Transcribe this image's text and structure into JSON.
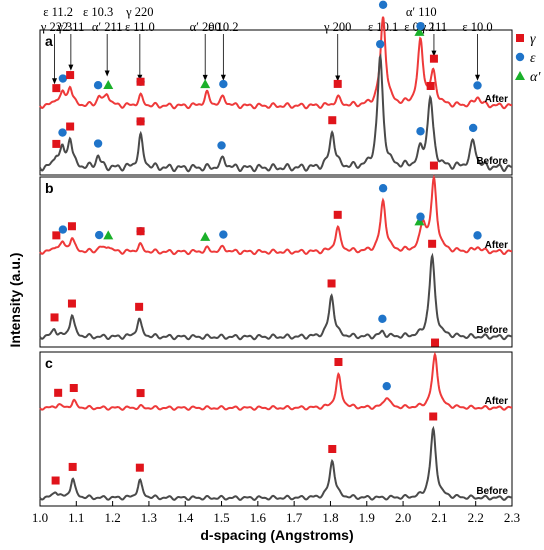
{
  "chart_data": {
    "type": "line",
    "xlabel": "d-spacing (Angstroms)",
    "ylabel": "Intensity (a.u.)",
    "xlim": [
      1.0,
      2.3
    ],
    "xticks": [
      "1.0",
      "1.1",
      "1.2",
      "1.3",
      "1.4",
      "1.5",
      "1.6",
      "1.7",
      "1.8",
      "1.9",
      "2.0",
      "2.1",
      "2.2",
      "2.3"
    ],
    "colors": {
      "after": "#ee3a3a",
      "before": "#4a4a4a",
      "gamma": "#e0141b",
      "epsilon": "#1f74c9",
      "alpha": "#1ab02a"
    },
    "legend": [
      {
        "symbol": "square",
        "color": "#e0141b",
        "label": "γ"
      },
      {
        "symbol": "circle",
        "color": "#1f74c9",
        "label": "ε"
      },
      {
        "symbol": "triangle",
        "color": "#1ab02a",
        "label": "α′"
      }
    ],
    "annotations": [
      {
        "label": "ε 11.2",
        "x": 1.05,
        "row": 1
      },
      {
        "label": "γ 222",
        "x": 1.04,
        "row": 2
      },
      {
        "label": "γ 311",
        "x": 1.085,
        "row": 2
      },
      {
        "label": "ε 10.3",
        "x": 1.16,
        "row": 1
      },
      {
        "label": "α′ 211",
        "x": 1.185,
        "row": 2
      },
      {
        "label": "γ 220",
        "x": 1.275,
        "row": 1
      },
      {
        "label": "ε 11.0",
        "x": 1.275,
        "row": 2
      },
      {
        "label": "α′ 200",
        "x": 1.455,
        "row": 2
      },
      {
        "label": "ε 10.2",
        "x": 1.505,
        "row": 2
      },
      {
        "label": "γ 200",
        "x": 1.82,
        "row": 2
      },
      {
        "label": "α′ 110",
        "x": 2.05,
        "row": 1
      },
      {
        "label": "ε 10.1",
        "x": 1.945,
        "row": 2
      },
      {
        "label": "ε 00.2",
        "x": 2.045,
        "row": 2
      },
      {
        "label": "γ 111",
        "x": 2.085,
        "row": 2
      },
      {
        "label": "ε 10.0",
        "x": 2.205,
        "row": 2
      }
    ],
    "panels": [
      {
        "letter": "a",
        "series": [
          {
            "name": "After",
            "peaks": [
              [
                1.045,
                0.07
              ],
              [
                1.063,
                0.13
              ],
              [
                1.083,
                0.22
              ],
              [
                1.163,
                0.1
              ],
              [
                1.185,
                0.14
              ],
              [
                1.277,
                0.11
              ],
              [
                1.46,
                0.14
              ],
              [
                1.505,
                0.1
              ],
              [
                1.82,
                0.09
              ],
              [
                1.945,
                1.0
              ],
              [
                2.048,
                0.72
              ],
              [
                2.083,
                0.35
              ],
              [
                2.205,
                0.1
              ]
            ],
            "markers": [
              [
                "gamma",
                1.045
              ],
              [
                "epsilon",
                1.063
              ],
              [
                "gamma",
                1.083
              ],
              [
                "epsilon",
                1.16
              ],
              [
                "alpha",
                1.188
              ],
              [
                "epsilon",
                1.277
              ],
              [
                "gamma",
                1.277
              ],
              [
                "alpha",
                1.455
              ],
              [
                "epsilon",
                1.505
              ],
              [
                "gamma",
                1.82
              ],
              [
                "epsilon",
                1.945
              ],
              [
                "alpha",
                2.045
              ],
              [
                "epsilon",
                2.048
              ],
              [
                "gamma",
                2.085
              ],
              [
                "epsilon",
                2.205
              ]
            ]
          },
          {
            "name": "Before",
            "peaks": [
              [
                1.045,
                0.1
              ],
              [
                1.062,
                0.14
              ],
              [
                1.083,
                0.25
              ],
              [
                1.16,
                0.1
              ],
              [
                1.277,
                0.26
              ],
              [
                1.505,
                0.08
              ],
              [
                1.805,
                0.3
              ],
              [
                1.937,
                0.92
              ],
              [
                2.048,
                0.12
              ],
              [
                2.075,
                0.57
              ],
              [
                2.193,
                0.22
              ]
            ],
            "markers": [
              [
                "gamma",
                1.045
              ],
              [
                "epsilon",
                1.062
              ],
              [
                "gamma",
                1.083
              ],
              [
                "epsilon",
                1.16
              ],
              [
                "epsilon",
                1.277
              ],
              [
                "gamma",
                1.277
              ],
              [
                "epsilon",
                1.5
              ],
              [
                "gamma",
                1.805
              ],
              [
                "epsilon",
                1.937
              ],
              [
                "epsilon",
                2.048
              ],
              [
                "gamma",
                2.076
              ],
              [
                "epsilon",
                2.193
              ]
            ]
          }
        ]
      },
      {
        "letter": "b",
        "series": [
          {
            "name": "After",
            "peaks": [
              [
                1.045,
                0.07
              ],
              [
                1.063,
                0.1
              ],
              [
                1.088,
                0.18
              ],
              [
                1.165,
                0.06
              ],
              [
                1.188,
                0.08
              ],
              [
                1.275,
                0.09
              ],
              [
                1.46,
                0.04
              ],
              [
                1.505,
                0.06
              ],
              [
                1.82,
                0.3
              ],
              [
                1.945,
                0.65
              ],
              [
                2.055,
                0.35
              ],
              [
                2.085,
                0.9
              ],
              [
                2.205,
                0.06
              ]
            ],
            "markers": [
              [
                "gamma",
                1.045
              ],
              [
                "epsilon",
                1.063
              ],
              [
                "gamma",
                1.088
              ],
              [
                "epsilon",
                1.163
              ],
              [
                "alpha",
                1.188
              ],
              [
                "epsilon",
                1.277
              ],
              [
                "gamma",
                1.277
              ],
              [
                "alpha",
                1.455
              ],
              [
                "epsilon",
                1.505
              ],
              [
                "gamma",
                1.82
              ],
              [
                "epsilon",
                1.945
              ],
              [
                "alpha",
                2.045
              ],
              [
                "epsilon",
                2.048
              ],
              [
                "gamma",
                2.085
              ],
              [
                "epsilon",
                2.205
              ]
            ]
          },
          {
            "name": "Before",
            "peaks": [
              [
                1.04,
                0.1
              ],
              [
                1.088,
                0.28
              ],
              [
                1.273,
                0.22
              ],
              [
                1.803,
                0.52
              ],
              [
                1.943,
                0.06
              ],
              [
                2.08,
                1.0
              ]
            ],
            "markers": [
              [
                "gamma",
                1.04
              ],
              [
                "gamma",
                1.088
              ],
              [
                "gamma",
                1.273
              ],
              [
                "gamma",
                1.803
              ],
              [
                "epsilon",
                1.943
              ],
              [
                "gamma",
                2.08
              ]
            ]
          }
        ]
      },
      {
        "letter": "c",
        "series": [
          {
            "name": "After",
            "peaks": [
              [
                1.05,
                0.06
              ],
              [
                1.093,
                0.11
              ],
              [
                1.277,
                0.02
              ],
              [
                1.822,
                0.52
              ],
              [
                1.955,
                0.18
              ],
              [
                2.088,
                0.85
              ]
            ],
            "markers": [
              [
                "gamma",
                1.05
              ],
              [
                "gamma",
                1.093
              ],
              [
                "gamma",
                1.277
              ],
              [
                "gamma",
                1.822
              ],
              [
                "epsilon",
                1.955
              ],
              [
                "gamma",
                2.088
              ]
            ]
          },
          {
            "name": "Before",
            "peaks": [
              [
                1.043,
                0.1
              ],
              [
                1.09,
                0.28
              ],
              [
                1.275,
                0.25
              ],
              [
                1.805,
                0.55
              ],
              [
                2.083,
                1.0
              ]
            ],
            "markers": [
              [
                "gamma",
                1.043
              ],
              [
                "gamma",
                1.09
              ],
              [
                "gamma",
                1.275
              ],
              [
                "gamma",
                1.805
              ],
              [
                "gamma",
                2.083
              ]
            ]
          }
        ]
      }
    ]
  }
}
